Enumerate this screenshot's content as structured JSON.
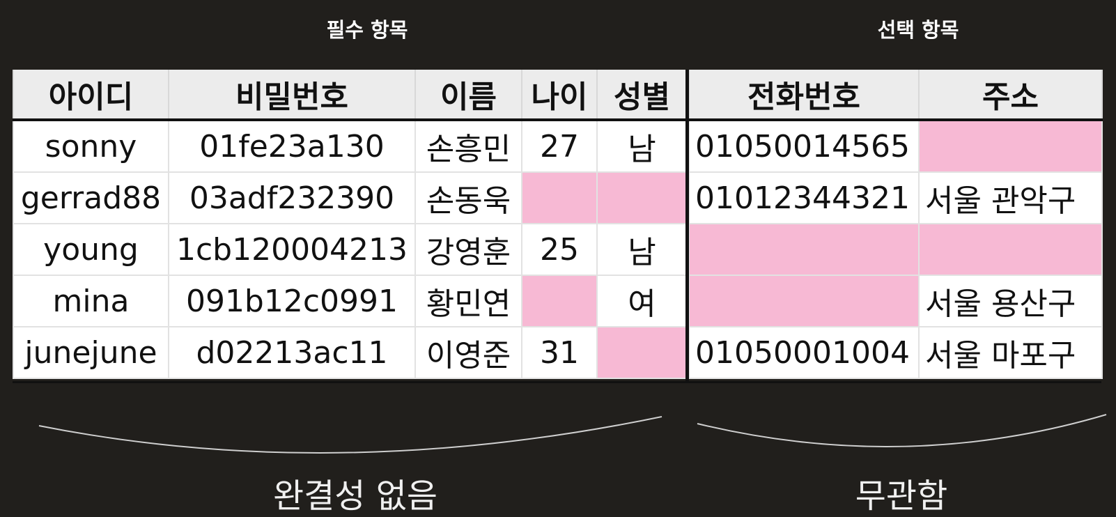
{
  "labels": {
    "required": "필수 항목",
    "optional": "선택 항목"
  },
  "captions": {
    "left": "완결성 없음",
    "right": "무관함"
  },
  "required_table": {
    "headers": [
      "아이디",
      "비밀번호",
      "이름",
      "나이",
      "성별"
    ],
    "rows": [
      [
        "sonny",
        "01fe23a130",
        "손흥민",
        "27",
        "남"
      ],
      [
        "gerrad88",
        "03adf232390",
        "손동욱",
        "",
        ""
      ],
      [
        "young",
        "1cb120004213",
        "강영훈",
        "25",
        "남"
      ],
      [
        "mina",
        "091b12c0991",
        "황민연",
        "",
        "여"
      ],
      [
        "junejune",
        "d02213ac11",
        "이영준",
        "31",
        ""
      ]
    ]
  },
  "optional_table": {
    "headers": [
      "전화번호",
      "주소"
    ],
    "rows": [
      [
        "01050014565",
        ""
      ],
      [
        "01012344321",
        "서울 관악구"
      ],
      [
        "",
        ""
      ],
      [
        "",
        "서울 용산구"
      ],
      [
        "01050001004",
        "서울 마포구"
      ]
    ]
  },
  "colors": {
    "background": "#211f1c",
    "missing_cell": "#f7b9d4",
    "header_bg": "#ececec"
  }
}
